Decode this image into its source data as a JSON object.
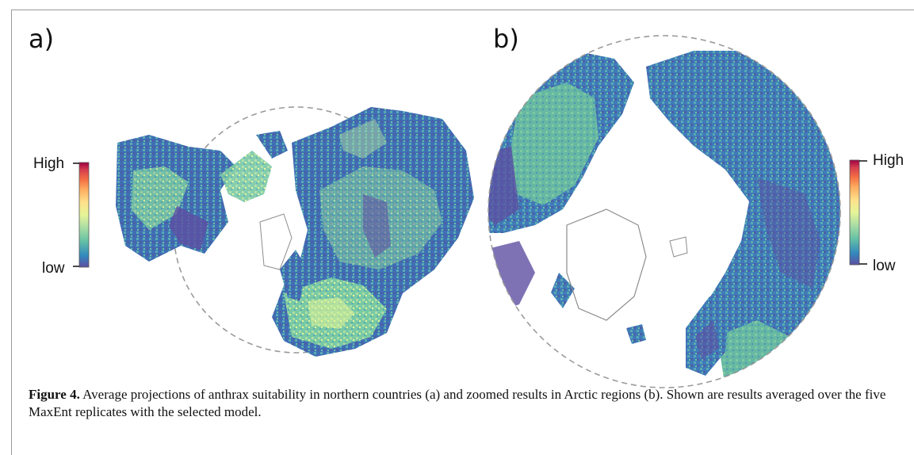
{
  "figure": {
    "panels": [
      {
        "label": "a)",
        "legend": {
          "high": "High",
          "low": "low"
        }
      },
      {
        "label": "b)",
        "legend": {
          "high": "High",
          "low": "low"
        }
      }
    ],
    "caption": {
      "label": "Figure 4.",
      "text": "Average projections of anthrax suitability in northern countries (a) and zoomed results in Arctic regions (b). Shown are results averaged over the five MaxEnt replicates with the selected model."
    },
    "colors": {
      "scale": [
        "#5e4fa2",
        "#3288bd",
        "#66c2a5",
        "#abdda4",
        "#e6f598",
        "#fee08b",
        "#fdae61",
        "#f46d43",
        "#d53e4f",
        "#9e0142"
      ],
      "coastline": "#8c8c8c",
      "circle_outline": "#9a9a9a"
    }
  }
}
